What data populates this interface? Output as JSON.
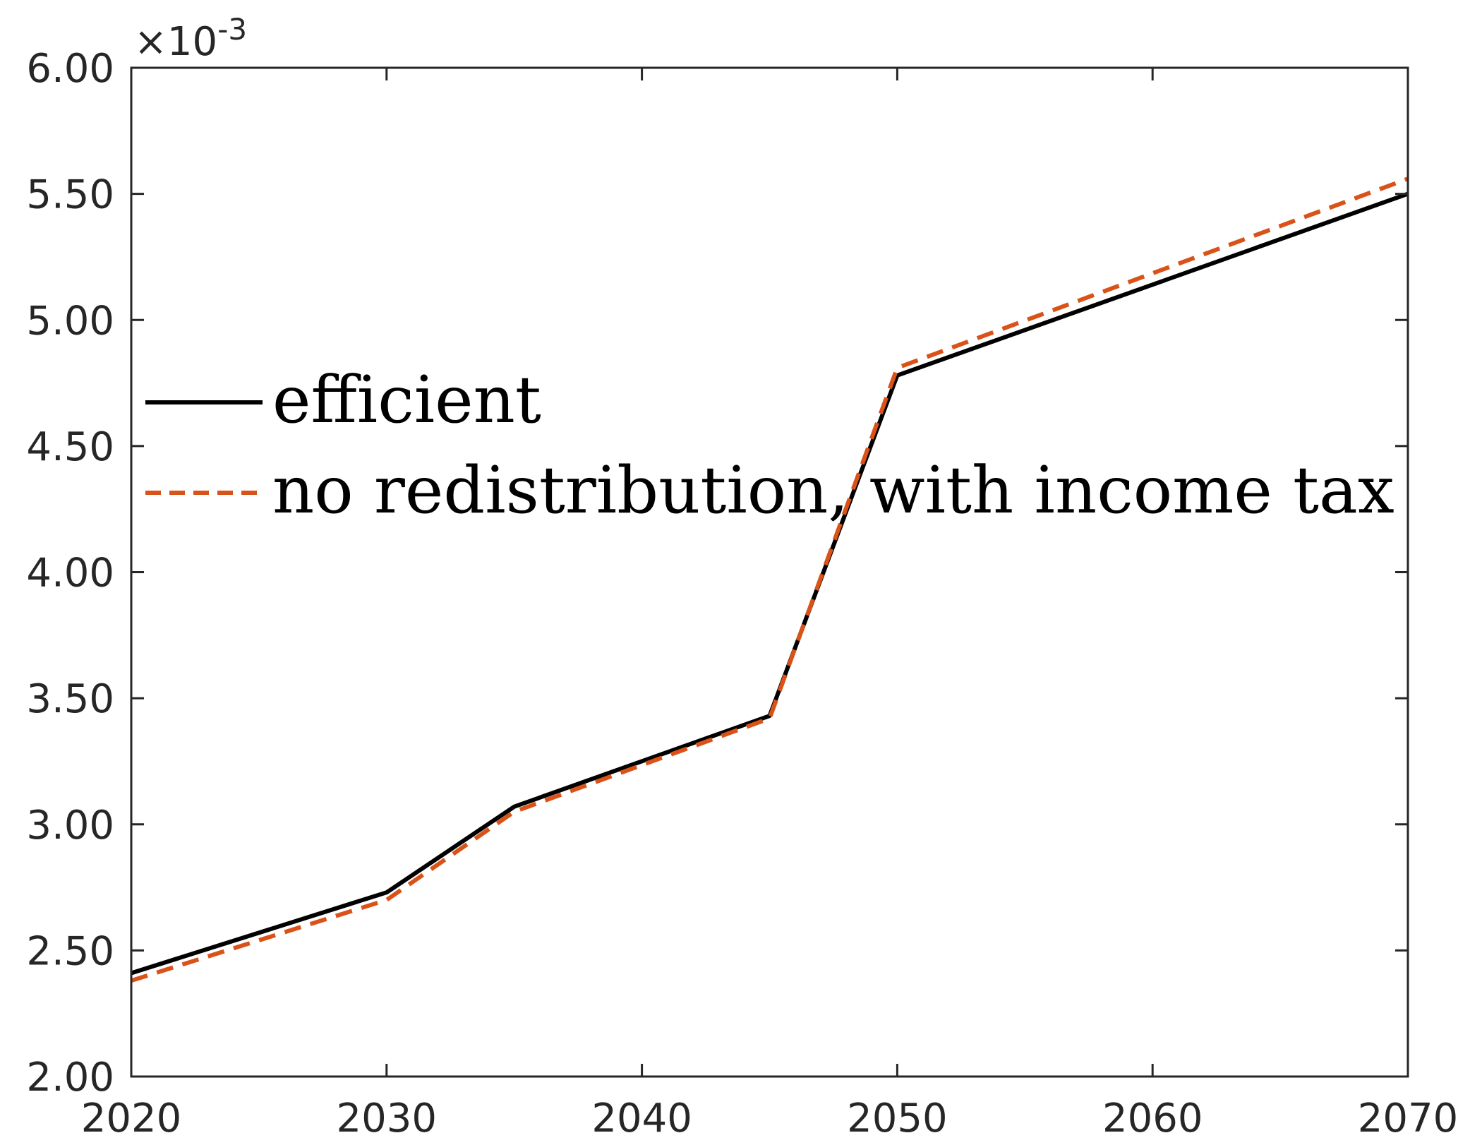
{
  "chart_data": {
    "type": "line",
    "title": "",
    "xlabel": "",
    "ylabel": "",
    "xlim": [
      2020,
      2070
    ],
    "ylim": [
      2.0,
      6.0
    ],
    "y_multiplier_label": "×10-3",
    "y_multiplier_base": "×10",
    "y_multiplier_exp": "-3",
    "x_ticks": [
      "2020",
      "2030",
      "2040",
      "2050",
      "2060",
      "2070"
    ],
    "x_tick_values": [
      2020,
      2030,
      2040,
      2050,
      2060,
      2070
    ],
    "y_ticks": [
      "2.00",
      "2.50",
      "3.00",
      "3.50",
      "4.00",
      "4.50",
      "5.00",
      "5.50",
      "6.00"
    ],
    "y_tick_values": [
      2.0,
      2.5,
      3.0,
      3.5,
      4.0,
      4.5,
      5.0,
      5.5,
      6.0
    ],
    "grid": false,
    "legend_placement": "center-left",
    "x": [
      2020,
      2030,
      2035,
      2045,
      2050,
      2070
    ],
    "series": [
      {
        "name": "efficient",
        "color": "#000000",
        "style": "solid",
        "values": [
          2.41,
          2.73,
          3.07,
          3.43,
          4.78,
          5.5
        ]
      },
      {
        "name": "no redistribution, with income tax",
        "color": "#D95319",
        "style": "dashed",
        "values": [
          2.38,
          2.7,
          3.05,
          3.42,
          4.81,
          5.56
        ]
      }
    ]
  }
}
